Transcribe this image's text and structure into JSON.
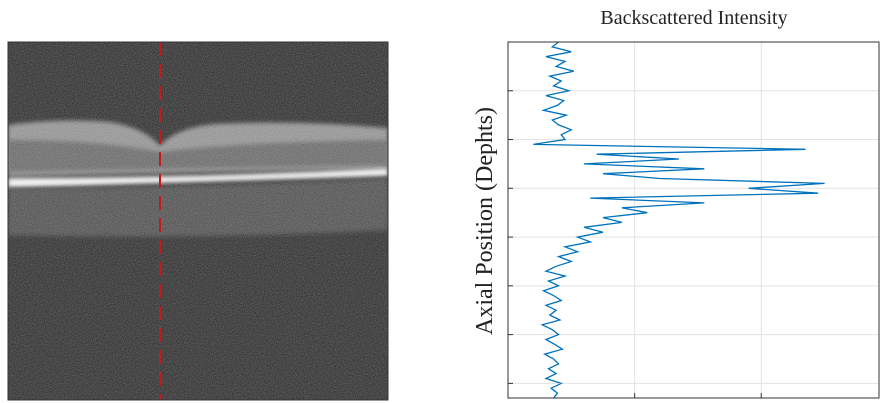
{
  "chart_data": {
    "type": "line",
    "orientation": "vertical",
    "title": "Backscattered Intensity",
    "y_label": "Axial Position (Dephts)",
    "color": "#0072bd",
    "grid": true,
    "xlim": [
      0,
      7.3
    ],
    "xticks": [
      1,
      2,
      3,
      4,
      5,
      6,
      7
    ],
    "ylim": [
      0,
      2.93
    ],
    "yticks": [
      1,
      2
    ],
    "x": [
      0,
      0.1,
      0.2,
      0.3,
      0.4,
      0.5,
      0.6,
      0.7,
      0.8,
      0.9,
      1,
      1.1,
      1.2,
      1.3,
      1.4,
      1.5,
      1.6,
      1.7,
      1.8,
      1.9,
      2,
      2.1,
      2.2,
      2.3,
      2.4,
      2.5,
      2.6,
      2.7,
      2.8,
      2.9,
      3,
      3.1,
      3.2,
      3.3,
      3.4,
      3.5,
      3.6,
      3.7,
      3.8,
      3.9,
      4,
      4.1,
      4.2,
      4.3,
      4.4,
      4.5,
      4.6,
      4.7,
      4.8,
      4.9,
      5,
      5.1,
      5.2,
      5.3,
      5.4,
      5.5,
      5.6,
      5.7,
      5.8,
      5.9,
      6,
      6.1,
      6.2,
      6.3,
      6.4,
      6.5,
      6.6,
      6.7,
      6.8,
      6.9,
      7,
      7.1,
      7.2,
      7.3
    ],
    "values": [
      0.4,
      0.35,
      0.5,
      0.3,
      0.45,
      0.38,
      0.52,
      0.33,
      0.42,
      0.36,
      0.48,
      0.3,
      0.44,
      0.39,
      0.28,
      0.46,
      0.35,
      0.4,
      0.5,
      0.42,
      0.45,
      0.2,
      2.35,
      0.7,
      1.35,
      0.6,
      1.55,
      0.75,
      1.2,
      2.5,
      1.9,
      2.45,
      0.65,
      1.55,
      0.9,
      1.1,
      0.75,
      0.9,
      0.6,
      0.75,
      0.55,
      0.65,
      0.45,
      0.55,
      0.4,
      0.5,
      0.38,
      0.3,
      0.45,
      0.32,
      0.4,
      0.28,
      0.36,
      0.42,
      0.3,
      0.38,
      0.33,
      0.41,
      0.27,
      0.35,
      0.4,
      0.3,
      0.37,
      0.43,
      0.29,
      0.36,
      0.4,
      0.32,
      0.38,
      0.3,
      0.42,
      0.34,
      0.39,
      0.36
    ]
  }
}
